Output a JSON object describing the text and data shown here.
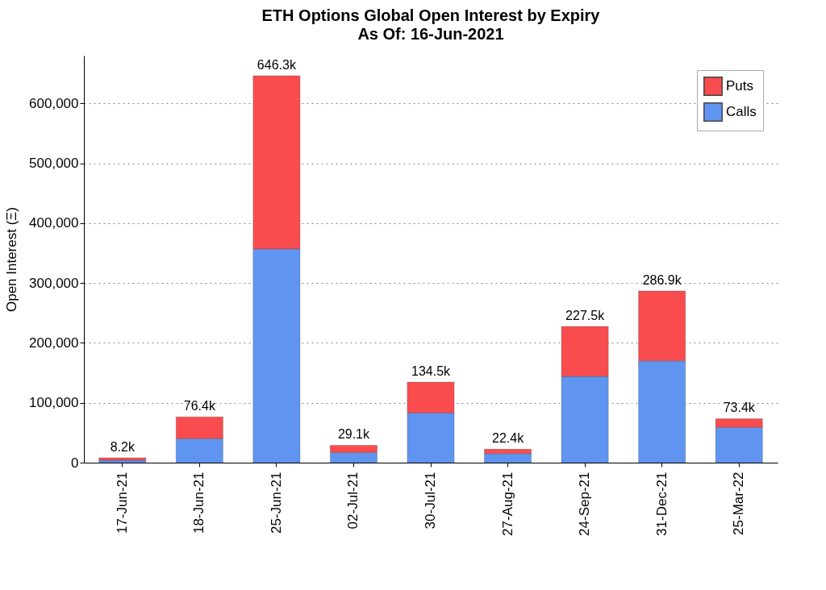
{
  "chart_data": {
    "type": "bar",
    "title": "ETH Options Global Open Interest by Expiry",
    "subtitle": "As Of: 16-Jun-2021",
    "ylabel": "Open Interest (Ξ)",
    "categories": [
      "17-Jun-21",
      "18-Jun-21",
      "25-Jun-21",
      "02-Jul-21",
      "30-Jul-21",
      "27-Aug-21",
      "24-Sep-21",
      "31-Dec-21",
      "25-Mar-22"
    ],
    "stacked": true,
    "series": [
      {
        "name": "Calls",
        "color": "#5f95f1",
        "values": [
          4000,
          40000,
          357000,
          17000,
          83000,
          15000,
          144000,
          170000,
          59000
        ]
      },
      {
        "name": "Puts",
        "color": "#f94c4f",
        "values": [
          4200,
          36400,
          289300,
          12100,
          51500,
          7400,
          83500,
          116900,
          14400
        ]
      }
    ],
    "totals": [
      "8.2k",
      "76.4k",
      "646.3k",
      "29.1k",
      "134.5k",
      "22.4k",
      "227.5k",
      "286.9k",
      "73.4k"
    ],
    "ylim": [
      0,
      680000
    ],
    "yticks": [
      0,
      {
        "value": 100000,
        "label": "100,000"
      },
      {
        "value": 200000,
        "label": "200,000"
      },
      {
        "value": 300000,
        "label": "300,000"
      },
      {
        "value": 400000,
        "label": "400,000"
      },
      {
        "value": 500000,
        "label": "500,000"
      },
      {
        "value": 600000,
        "label": "600,000"
      }
    ],
    "grid": "y",
    "legend": "top right"
  }
}
